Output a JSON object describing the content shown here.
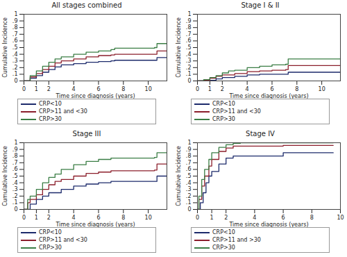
{
  "chart_data": [
    {
      "type": "line",
      "title": "All stages combined",
      "x_label": "Time since diagnosis (years)",
      "y_label": "Cumulative Incidence",
      "xlim": [
        0,
        11.5
      ],
      "ylim": [
        0,
        1
      ],
      "xticks": [
        0,
        1,
        2,
        4,
        6,
        8,
        10
      ],
      "yticks": [
        0,
        {
          "value": 0.1,
          "label": ".1"
        },
        {
          "value": 0.2,
          "label": ".2"
        },
        {
          "value": 0.3,
          "label": ".3"
        },
        {
          "value": 0.4,
          "label": ".4"
        },
        {
          "value": 0.5,
          "label": ".5"
        },
        {
          "value": 0.6,
          "label": ".6"
        },
        {
          "value": 0.7,
          "label": ".7"
        },
        {
          "value": 0.8,
          "label": ".8"
        },
        {
          "value": 0.9,
          "label": ".9"
        },
        1
      ],
      "line_style": "step",
      "legend": "bottom",
      "series": [
        {
          "name": "CRP<10",
          "color": "#1c2a6b",
          "x": [
            0,
            0.5,
            1,
            1.5,
            2,
            2.5,
            3,
            4,
            5,
            6,
            7,
            7.3,
            10.5,
            10.7,
            11.5
          ],
          "values": [
            0,
            0.04,
            0.08,
            0.13,
            0.17,
            0.21,
            0.24,
            0.26,
            0.28,
            0.29,
            0.3,
            0.31,
            0.31,
            0.35,
            0.35
          ]
        },
        {
          "name": "CRP>11 and <30",
          "color": "#8b1e2b",
          "x": [
            0,
            0.5,
            1,
            1.5,
            2,
            2.5,
            3,
            4,
            5,
            6,
            7,
            7.3,
            10.5,
            10.7,
            11.5
          ],
          "values": [
            0,
            0.06,
            0.11,
            0.17,
            0.22,
            0.27,
            0.3,
            0.33,
            0.36,
            0.38,
            0.39,
            0.4,
            0.4,
            0.45,
            0.45
          ]
        },
        {
          "name": "CRP>30",
          "color": "#3a7d44",
          "x": [
            0,
            0.5,
            1,
            1.5,
            2,
            2.5,
            3,
            4,
            5,
            6,
            7,
            7.3,
            10.5,
            10.7,
            11.5
          ],
          "values": [
            0,
            0.08,
            0.15,
            0.22,
            0.28,
            0.33,
            0.36,
            0.4,
            0.43,
            0.45,
            0.47,
            0.49,
            0.5,
            0.56,
            0.56
          ]
        }
      ]
    },
    {
      "type": "line",
      "title": "Stage I & II",
      "x_label": "Time since diagnosis (years)",
      "y_label": "Cumulative Incidence",
      "xlim": [
        0,
        11.5
      ],
      "ylim": [
        0,
        1
      ],
      "xticks": [
        0,
        1,
        2,
        4,
        6,
        8,
        10
      ],
      "yticks": [
        0,
        {
          "value": 0.1,
          "label": ".1"
        },
        {
          "value": 0.2,
          "label": ".2"
        },
        {
          "value": 0.3,
          "label": ".3"
        },
        {
          "value": 0.4,
          "label": ".4"
        },
        {
          "value": 0.5,
          "label": ".5"
        },
        {
          "value": 0.6,
          "label": ".6"
        },
        {
          "value": 0.7,
          "label": ".7"
        },
        {
          "value": 0.8,
          "label": ".8"
        },
        {
          "value": 0.9,
          "label": ".9"
        },
        1
      ],
      "line_style": "step",
      "legend": "bottom",
      "series": [
        {
          "name": "CRP<10",
          "color": "#1c2a6b",
          "x": [
            0,
            0.7,
            1.5,
            2,
            3,
            4,
            5,
            7.1,
            7.3,
            11.5
          ],
          "values": [
            0,
            0.01,
            0.03,
            0.05,
            0.07,
            0.09,
            0.1,
            0.1,
            0.13,
            0.13
          ]
        },
        {
          "name": "CRP>11 and <30",
          "color": "#8b1e2b",
          "x": [
            0,
            0.5,
            1,
            1.5,
            2,
            3,
            4,
            5,
            6,
            7.1,
            7.3,
            11.5
          ],
          "values": [
            0,
            0.01,
            0.04,
            0.07,
            0.09,
            0.11,
            0.14,
            0.15,
            0.16,
            0.17,
            0.23,
            0.23
          ]
        },
        {
          "name": "CRP>30",
          "color": "#3a7d44",
          "x": [
            0,
            0.5,
            1,
            1.5,
            2,
            2.5,
            3,
            4,
            5,
            6,
            7.1,
            7.3,
            11.5
          ],
          "values": [
            0,
            0.02,
            0.05,
            0.08,
            0.12,
            0.15,
            0.16,
            0.2,
            0.22,
            0.24,
            0.25,
            0.33,
            0.33
          ]
        }
      ]
    },
    {
      "type": "line",
      "title": "Stage III",
      "x_label": "Time since diagnosis (years)",
      "y_label": "Cumulative Incidence",
      "xlim": [
        0,
        11.5
      ],
      "ylim": [
        0,
        1
      ],
      "xticks": [
        0,
        1,
        2,
        4,
        6,
        8,
        10
      ],
      "yticks": [
        0,
        {
          "value": 0.1,
          "label": ".1"
        },
        {
          "value": 0.2,
          "label": ".2"
        },
        {
          "value": 0.3,
          "label": ".3"
        },
        {
          "value": 0.4,
          "label": ".4"
        },
        {
          "value": 0.5,
          "label": ".5"
        },
        {
          "value": 0.6,
          "label": ".6"
        },
        {
          "value": 0.7,
          "label": ".7"
        },
        {
          "value": 0.8,
          "label": ".8"
        },
        {
          "value": 0.9,
          "label": ".9"
        },
        1
      ],
      "line_style": "step",
      "legend": "bottom",
      "series": [
        {
          "name": "CRP<10",
          "color": "#1c2a6b",
          "x": [
            0,
            0.5,
            1,
            1.5,
            2,
            3,
            4,
            5,
            6,
            7,
            10.5,
            10.7,
            11.5
          ],
          "values": [
            0,
            0.08,
            0.15,
            0.2,
            0.25,
            0.3,
            0.35,
            0.38,
            0.4,
            0.42,
            0.42,
            0.5,
            0.5
          ]
        },
        {
          "name": "CRP>11 and <30",
          "color": "#8b1e2b",
          "x": [
            0,
            0.3,
            0.5,
            1,
            1.5,
            2,
            2.5,
            3,
            4,
            5,
            6,
            7,
            10.5,
            10.7,
            11.5
          ],
          "values": [
            0,
            0.1,
            0.15,
            0.22,
            0.3,
            0.37,
            0.42,
            0.45,
            0.5,
            0.54,
            0.56,
            0.58,
            0.59,
            0.68,
            0.68
          ]
        },
        {
          "name": "CRP>30",
          "color": "#3a7d44",
          "x": [
            0,
            0.3,
            0.5,
            1,
            1.5,
            2,
            2.5,
            3,
            4,
            5,
            6,
            7,
            10.5,
            10.7,
            11.5
          ],
          "values": [
            0,
            0.15,
            0.2,
            0.3,
            0.4,
            0.48,
            0.53,
            0.6,
            0.67,
            0.72,
            0.75,
            0.77,
            0.78,
            0.85,
            0.85
          ]
        }
      ]
    },
    {
      "type": "line",
      "title": "Stage IV",
      "x_label": "Time since diagnosis (years)",
      "y_label": "Cumulative Incidence",
      "xlim": [
        0,
        10
      ],
      "ylim": [
        0,
        1
      ],
      "xticks": [
        0,
        1,
        2,
        4,
        6,
        8,
        10
      ],
      "yticks": [
        0,
        {
          "value": 0.1,
          "label": ".1"
        },
        {
          "value": 0.2,
          "label": ".2"
        },
        {
          "value": 0.3,
          "label": ".3"
        },
        {
          "value": 0.4,
          "label": ".4"
        },
        {
          "value": 0.5,
          "label": ".5"
        },
        {
          "value": 0.6,
          "label": ".6"
        },
        {
          "value": 0.7,
          "label": ".7"
        },
        {
          "value": 0.8,
          "label": ".8"
        },
        {
          "value": 0.9,
          "label": ".9"
        },
        1
      ],
      "line_style": "step",
      "legend": "bottom",
      "series": [
        {
          "name": "CRP<10",
          "color": "#1c2a6b",
          "x": [
            0,
            0.2,
            0.4,
            0.6,
            0.8,
            1,
            1.5,
            2,
            2.5,
            6,
            9.5
          ],
          "values": [
            0,
            0.1,
            0.25,
            0.4,
            0.5,
            0.57,
            0.68,
            0.77,
            0.8,
            0.85,
            0.85
          ]
        },
        {
          "name": "CRP>11 and >30",
          "color": "#8b1e2b",
          "x": [
            0,
            0.1,
            0.3,
            0.5,
            0.8,
            1,
            1.5,
            2,
            2.5,
            6,
            9.5
          ],
          "values": [
            0,
            0.15,
            0.35,
            0.5,
            0.65,
            0.75,
            0.87,
            0.92,
            0.95,
            0.96,
            0.96
          ]
        },
        {
          "name": "CRP>30",
          "color": "#3a7d44",
          "x": [
            0,
            0.1,
            0.3,
            0.5,
            0.8,
            1,
            1.5,
            2,
            2.5,
            3,
            9.5
          ],
          "values": [
            0,
            0.2,
            0.45,
            0.6,
            0.75,
            0.85,
            0.93,
            0.97,
            0.99,
            1.0,
            1.0
          ]
        }
      ]
    }
  ]
}
